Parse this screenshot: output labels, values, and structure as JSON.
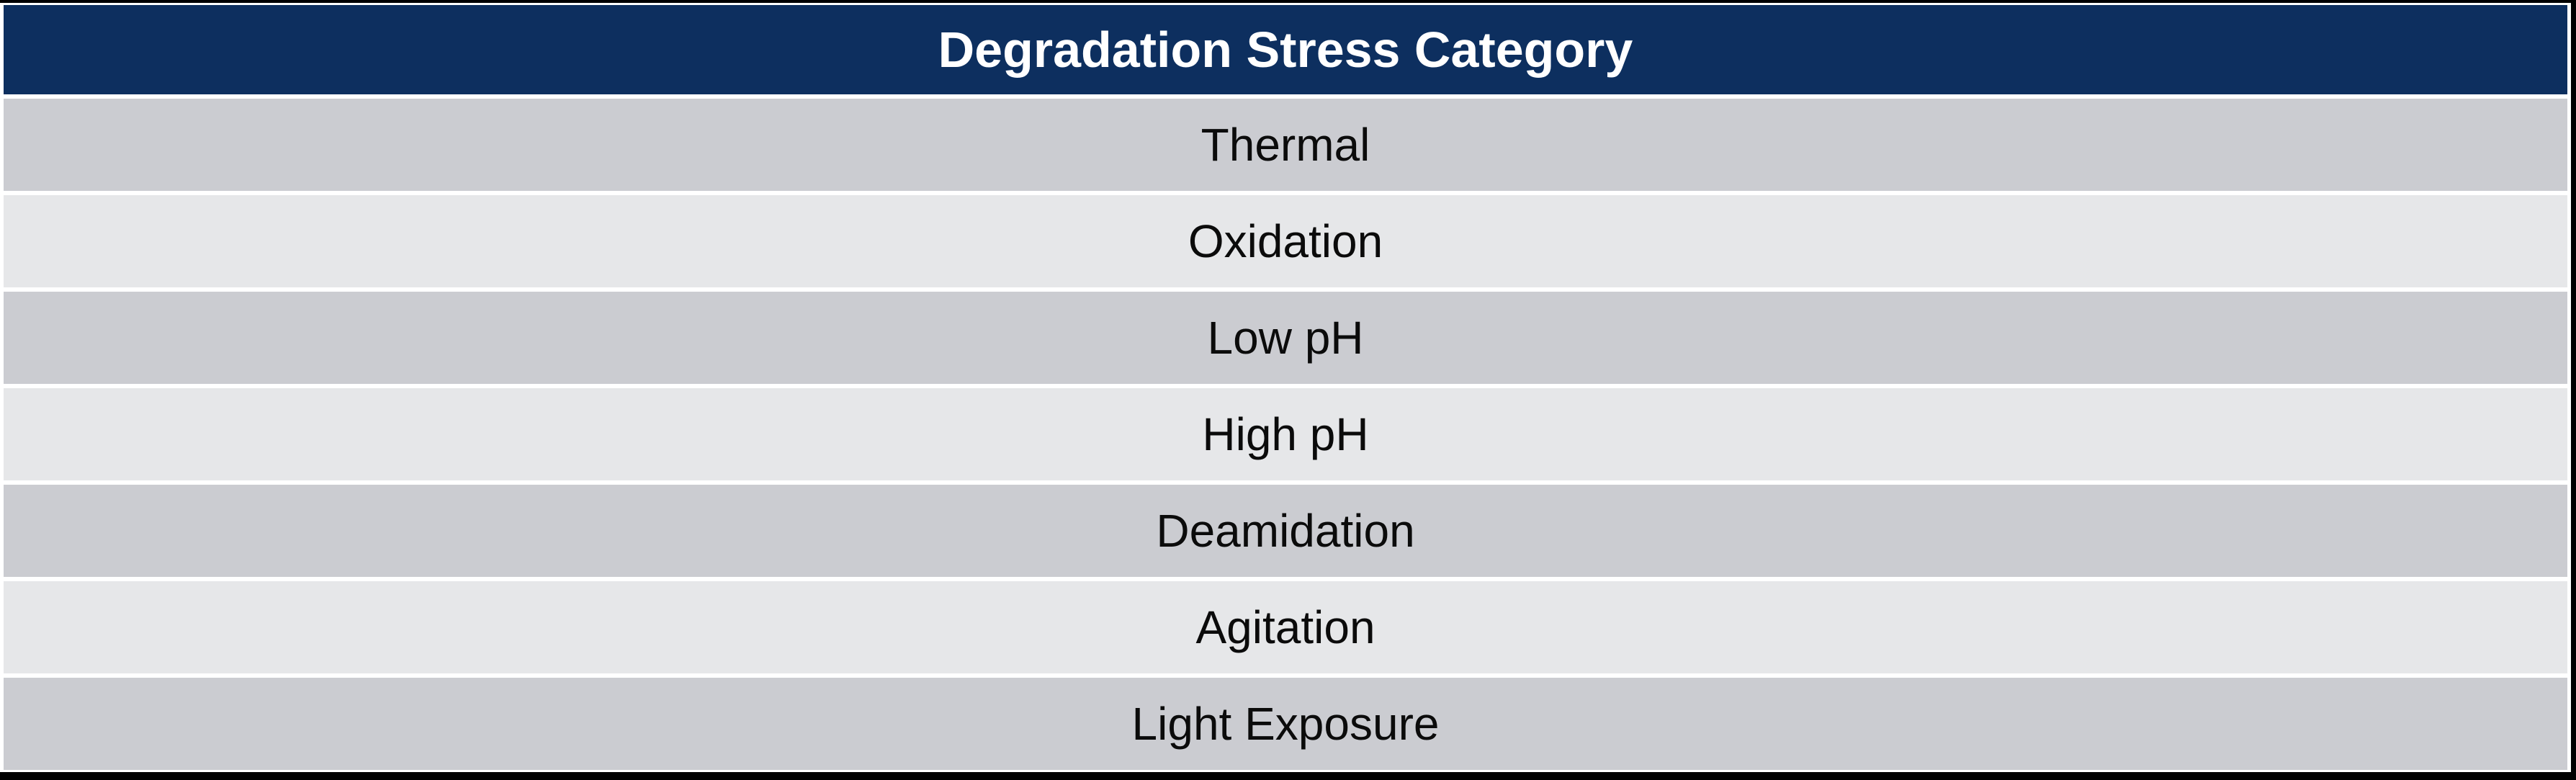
{
  "table": {
    "header": "Degradation Stress Category",
    "rows": [
      "Thermal",
      "Oxidation",
      "Low pH",
      "High pH",
      "Deamidation",
      "Agitation",
      "Light Exposure"
    ]
  },
  "colors": {
    "header_bg": "#0d2f5f",
    "header_text": "#ffffff",
    "row_dark": "#cbccd1",
    "row_light": "#e6e7e9",
    "gap": "#ffffff",
    "border": "#000000",
    "row_text": "#0b0b0b"
  }
}
